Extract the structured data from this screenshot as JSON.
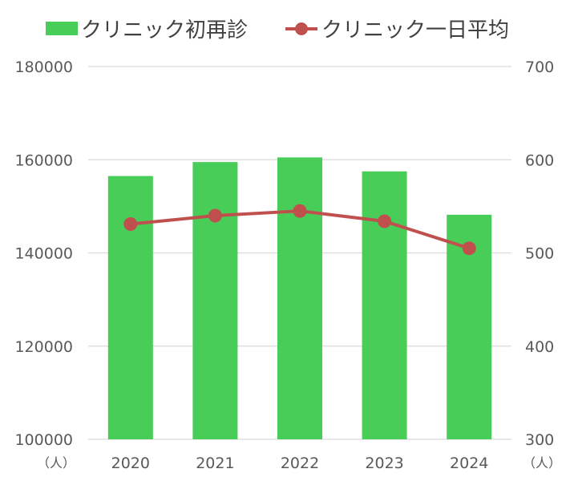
{
  "chart_data": {
    "type": "bar",
    "categories": [
      "2020",
      "2021",
      "2022",
      "2023",
      "2024"
    ],
    "series": [
      {
        "name": "クリニック初再診",
        "type": "bar",
        "axis": "left",
        "color": "#47cd58",
        "values": [
          156500,
          159500,
          160500,
          157500,
          148200
        ]
      },
      {
        "name": "クリニック一日平均",
        "type": "line",
        "axis": "right",
        "color": "#c0504d",
        "values": [
          531,
          540,
          545,
          534,
          505
        ]
      }
    ],
    "y_left": {
      "min": 100000,
      "max": 180000,
      "ticks": [
        "180000",
        "160000",
        "140000",
        "120000",
        "100000"
      ],
      "unit": "（人）"
    },
    "y_right": {
      "min": 300,
      "max": 700,
      "ticks": [
        "700",
        "600",
        "500",
        "400",
        "300"
      ],
      "unit": "（人）"
    },
    "grid": true,
    "legend_position": "top"
  }
}
